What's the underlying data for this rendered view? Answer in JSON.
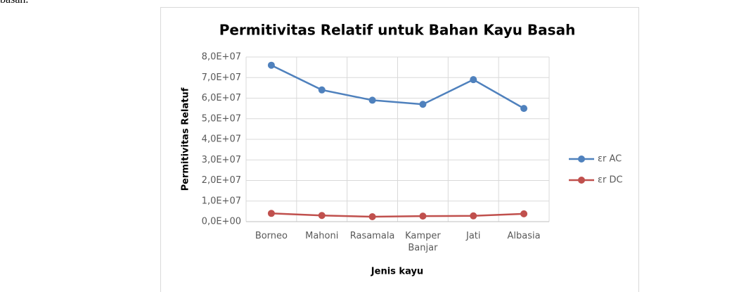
{
  "document": {
    "fragment": "basah."
  },
  "chart_data": {
    "type": "line",
    "title": "Permitivitas Relatif untuk Bahan Kayu Basah",
    "x_label": "Jenis kayu",
    "y_label": "Permitivitas Relatuf",
    "categories": [
      "Borneo",
      "Mahoni",
      "Rasamala",
      "Kamper Banjar",
      "Jati",
      "Albasia"
    ],
    "series": [
      {
        "name": "εr AC",
        "color": "#4f81bd",
        "values": [
          76000000,
          64000000,
          59000000,
          57000000,
          69000000,
          55000000
        ]
      },
      {
        "name": "εr DC",
        "color": "#c0504d",
        "values": [
          4000000,
          3000000,
          2400000,
          2700000,
          2800000,
          3800000
        ]
      }
    ],
    "ylim": [
      0,
      80000000
    ],
    "yticks": [
      {
        "value": 0,
        "label": "0,0E+00"
      },
      {
        "value": 10000000,
        "label": "1,0E+07"
      },
      {
        "value": 20000000,
        "label": "2,0E+07"
      },
      {
        "value": 30000000,
        "label": "3,0E+07"
      },
      {
        "value": 40000000,
        "label": "4,0E+07"
      },
      {
        "value": 50000000,
        "label": "5,0E+07"
      },
      {
        "value": 60000000,
        "label": "6,0E+07"
      },
      {
        "value": 70000000,
        "label": "7,0E+07"
      },
      {
        "value": 80000000,
        "label": "8,0E+07"
      }
    ],
    "grid": true,
    "legend": "right"
  }
}
